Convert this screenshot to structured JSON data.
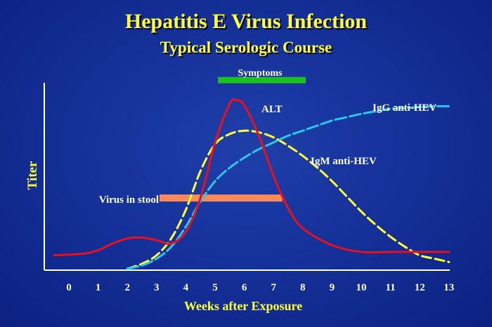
{
  "chart_data": {
    "type": "line",
    "title": "Hepatitis E Virus Infection",
    "subtitle": "Typical Serologic Course",
    "xlabel": "Weeks after Exposure",
    "ylabel": "Titer",
    "xlim": [
      -0.5,
      13
    ],
    "x_ticks": [
      0,
      1,
      2,
      3,
      4,
      5,
      6,
      7,
      8,
      9,
      10,
      11,
      12,
      13
    ],
    "y_tick_labels": false,
    "grid": false,
    "colors": {
      "background": "#15319a",
      "title": "#ffff33",
      "alt": "#e8101c",
      "igm": "#ffff33",
      "igg": "#29c8ec",
      "symptoms": "#1ec21e",
      "virus": "#ff8a55",
      "axis": "#ffffff",
      "label": "#ffffff"
    },
    "series": [
      {
        "name": "ALT",
        "color": "#e8101c",
        "x": [
          -0.5,
          0.5,
          1,
          1.5,
          2,
          2.5,
          3,
          3.5,
          4,
          4.5,
          5,
          5.5,
          5.75,
          6,
          6.5,
          7,
          7.5,
          8,
          9,
          10,
          11,
          12,
          13
        ],
        "y": [
          8,
          9,
          11,
          15,
          18,
          18.5,
          17,
          15,
          22,
          42,
          75,
          98,
          100,
          97,
          79,
          55,
          36,
          24,
          14,
          10,
          10,
          10,
          10
        ]
      },
      {
        "name": "IgM anti-HEV",
        "color": "#ffff33",
        "x": [
          2,
          2.5,
          3,
          3.5,
          4,
          4.5,
          5,
          5.5,
          6,
          6.5,
          7,
          7.5,
          8,
          8.5,
          9,
          9.5,
          10,
          10.5,
          11,
          11.5,
          12,
          12.5,
          13
        ],
        "y": [
          0,
          3,
          8,
          18,
          35,
          58,
          74,
          80,
          82,
          81,
          78,
          73,
          67,
          60,
          52,
          43,
          34,
          26,
          19,
          13,
          8,
          6,
          4
        ]
      },
      {
        "name": "IgG anti-HEV",
        "color": "#29c8ec",
        "x": [
          2,
          2.5,
          3,
          3.5,
          4,
          4.5,
          5,
          5.5,
          6,
          6.5,
          7,
          7.5,
          8,
          8.5,
          9,
          9.5,
          10,
          10.5,
          11,
          11.5,
          12,
          12.5,
          13
        ],
        "y": [
          0,
          2,
          6,
          13,
          25,
          40,
          52,
          60,
          66,
          71,
          75,
          79,
          82,
          85,
          88,
          90,
          92,
          93.5,
          95,
          95.5,
          96,
          96.5,
          96.5
        ]
      }
    ],
    "bars": [
      {
        "name": "Symptoms",
        "x_start": 5.1,
        "x_end": 8.1,
        "y": 112,
        "color": "#1ec21e"
      },
      {
        "name": "Virus in stool",
        "x_start": 3.1,
        "x_end": 7.3,
        "y": 42,
        "color": "#ff8a55"
      }
    ],
    "annotations": {
      "alt": "ALT",
      "igm": "IgM anti-HEV",
      "igg": "IgG anti-HEV",
      "symptoms": "Symptoms",
      "virus": "Virus in stool"
    }
  }
}
